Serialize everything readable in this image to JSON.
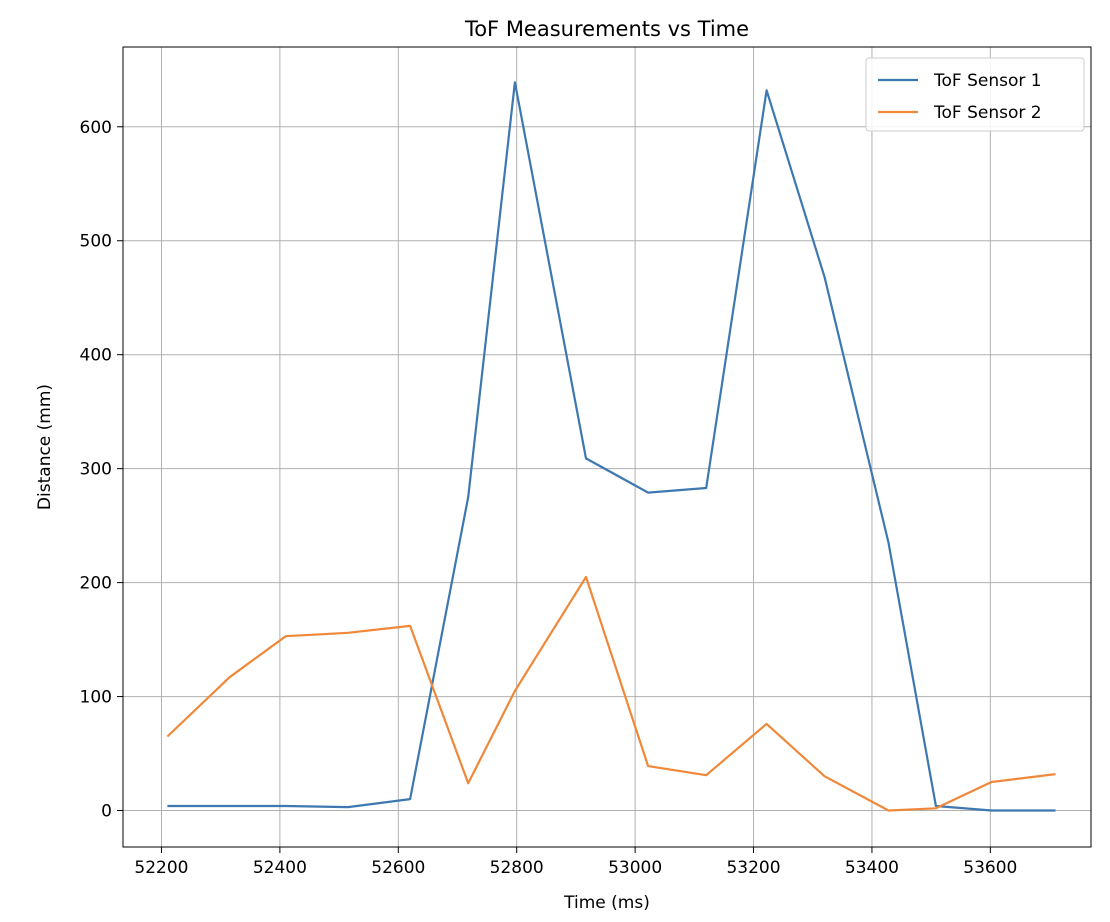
{
  "chart_data": {
    "type": "line",
    "title": "ToF Measurements vs Time",
    "xlabel": "Time (ms)",
    "ylabel": "Distance (mm)",
    "xlim": [
      52135,
      53770
    ],
    "ylim": [
      -32,
      670
    ],
    "xticks": [
      52200,
      52400,
      52600,
      52800,
      53000,
      53200,
      53400,
      53600
    ],
    "yticks": [
      0,
      100,
      200,
      300,
      400,
      500,
      600
    ],
    "grid": true,
    "legend_position": "top-right",
    "series": [
      {
        "name": "ToF Sensor 1",
        "color": "#3d78b0",
        "x": [
          52210,
          52315,
          52410,
          52515,
          52620,
          52718,
          52797,
          52917,
          53022,
          53120,
          53222,
          53320,
          53428,
          53508,
          53602,
          53710
        ],
        "y": [
          4,
          4,
          4,
          3,
          10,
          275,
          639,
          309,
          279,
          283,
          632,
          468,
          235,
          4,
          0,
          0
        ]
      },
      {
        "name": "ToF Sensor 2",
        "color": "#f0883a",
        "x": [
          52210,
          52315,
          52410,
          52515,
          52620,
          52718,
          52797,
          52917,
          53022,
          53120,
          53222,
          53320,
          53428,
          53508,
          53602,
          53710
        ],
        "y": [
          65,
          117,
          153,
          156,
          162,
          24,
          105,
          205,
          39,
          31,
          76,
          30,
          0,
          2,
          25,
          32
        ]
      }
    ]
  }
}
